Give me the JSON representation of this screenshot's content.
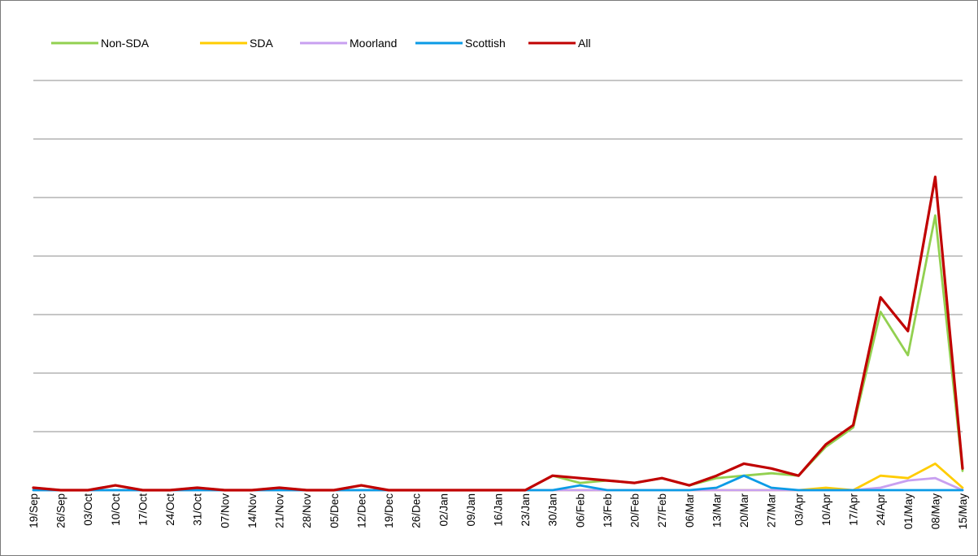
{
  "chart_data": {
    "type": "line",
    "title": "",
    "xlabel": "",
    "ylabel": "",
    "ylim": [
      0,
      8.5
    ],
    "grid": "horizontal",
    "legend": "top-left",
    "categories": [
      "19/Sep",
      "26/Sep",
      "03/Oct",
      "10/Oct",
      "17/Oct",
      "24/Oct",
      "31/Oct",
      "07/Nov",
      "14/Nov",
      "21/Nov",
      "28/Nov",
      "05/Dec",
      "12/Dec",
      "19/Dec",
      "26/Dec",
      "02/Jan",
      "09/Jan",
      "16/Jan",
      "23/Jan",
      "30/Jan",
      "06/Feb",
      "13/Feb",
      "20/Feb",
      "27/Feb",
      "06/Mar",
      "13/Mar",
      "20/Mar",
      "27/Mar",
      "03/Apr",
      "10/Apr",
      "17/Apr",
      "24/Apr",
      "01/May",
      "08/May",
      "15/May"
    ],
    "series": [
      {
        "name": "Non-SDA",
        "color": "#92d050",
        "values": [
          0.05,
          0,
          0,
          0.1,
          0,
          0,
          0.05,
          0,
          0,
          0.05,
          0,
          0,
          0.1,
          0,
          0,
          0,
          0,
          0,
          0,
          0.3,
          0.15,
          0.2,
          0.15,
          0.25,
          0.1,
          0.25,
          0.3,
          0.35,
          0.3,
          0.9,
          1.3,
          3.7,
          2.8,
          5.7,
          0.4
        ]
      },
      {
        "name": "SDA",
        "color": "#ffcc00",
        "values": [
          0,
          0,
          0,
          0,
          0,
          0,
          0,
          0,
          0,
          0,
          0,
          0,
          0,
          0,
          0,
          0,
          0,
          0,
          0,
          0,
          0,
          0,
          0,
          0,
          0,
          0,
          0,
          0,
          0,
          0.05,
          0,
          0.3,
          0.25,
          0.55,
          0.05
        ]
      },
      {
        "name": "Moorland",
        "color": "#c8a0f0",
        "values": [
          0,
          0,
          0,
          0,
          0,
          0,
          0,
          0,
          0,
          0,
          0,
          0,
          0,
          0,
          0,
          0,
          0,
          0,
          0,
          0,
          0,
          0,
          0,
          0,
          0,
          0,
          0,
          0,
          0,
          0,
          0,
          0.05,
          0.2,
          0.25,
          0
        ]
      },
      {
        "name": "Scottish",
        "color": "#0b9be6",
        "values": [
          0,
          0,
          0,
          0,
          0,
          0,
          0,
          0,
          0,
          0,
          0,
          0,
          0,
          0,
          0,
          0,
          0,
          0,
          0,
          0,
          0.1,
          0,
          0,
          0,
          0,
          0.05,
          0.3,
          0.05,
          0,
          0,
          0,
          0,
          0,
          0,
          0
        ]
      },
      {
        "name": "All",
        "color": "#c00000",
        "values": [
          0.05,
          0,
          0,
          0.1,
          0,
          0,
          0.05,
          0,
          0,
          0.05,
          0,
          0,
          0.1,
          0,
          0,
          0,
          0,
          0,
          0,
          0.3,
          0.25,
          0.2,
          0.15,
          0.25,
          0.1,
          0.3,
          0.55,
          0.45,
          0.3,
          0.95,
          1.35,
          4,
          3.3,
          6.5,
          0.45
        ]
      }
    ]
  }
}
